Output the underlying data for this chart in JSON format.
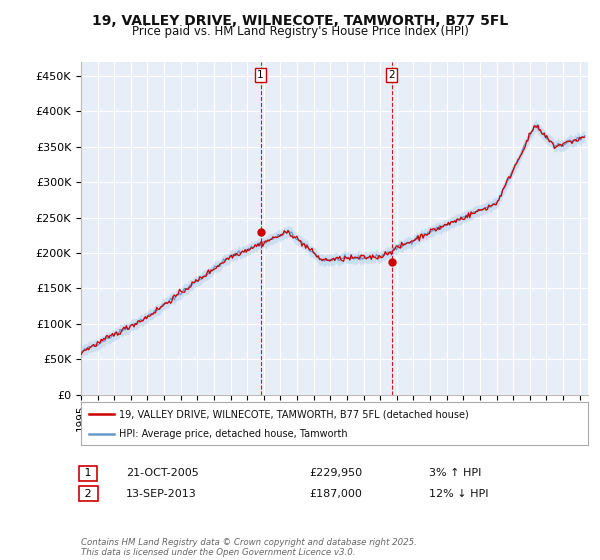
{
  "title_line1": "19, VALLEY DRIVE, WILNECOTE, TAMWORTH, B77 5FL",
  "title_line2": "Price paid vs. HM Land Registry's House Price Index (HPI)",
  "ylabel_ticks": [
    "£0",
    "£50K",
    "£100K",
    "£150K",
    "£200K",
    "£250K",
    "£300K",
    "£350K",
    "£400K",
    "£450K"
  ],
  "ytick_values": [
    0,
    50000,
    100000,
    150000,
    200000,
    250000,
    300000,
    350000,
    400000,
    450000
  ],
  "ylim": [
    0,
    470000
  ],
  "xlim_start": 1995.0,
  "xlim_end": 2025.5,
  "marker1_x": 2005.8,
  "marker1_y": 229950,
  "marker2_x": 2013.7,
  "marker2_y": 187000,
  "purchase1_date": "21-OCT-2005",
  "purchase1_price": "£229,950",
  "purchase1_change": "3% ↑ HPI",
  "purchase2_date": "13-SEP-2013",
  "purchase2_price": "£187,000",
  "purchase2_change": "12% ↓ HPI",
  "legend_line1": "19, VALLEY DRIVE, WILNECOTE, TAMWORTH, B77 5FL (detached house)",
  "legend_line2": "HPI: Average price, detached house, Tamworth",
  "footer": "Contains HM Land Registry data © Crown copyright and database right 2025.\nThis data is licensed under the Open Government Licence v3.0.",
  "price_line_color": "#cc0000",
  "hpi_line_color": "#6699cc",
  "hpi_fill_color": "#b8d4ed",
  "background_color": "#ffffff",
  "plot_bg_color": "#e8eef8",
  "grid_color": "#ffffff"
}
